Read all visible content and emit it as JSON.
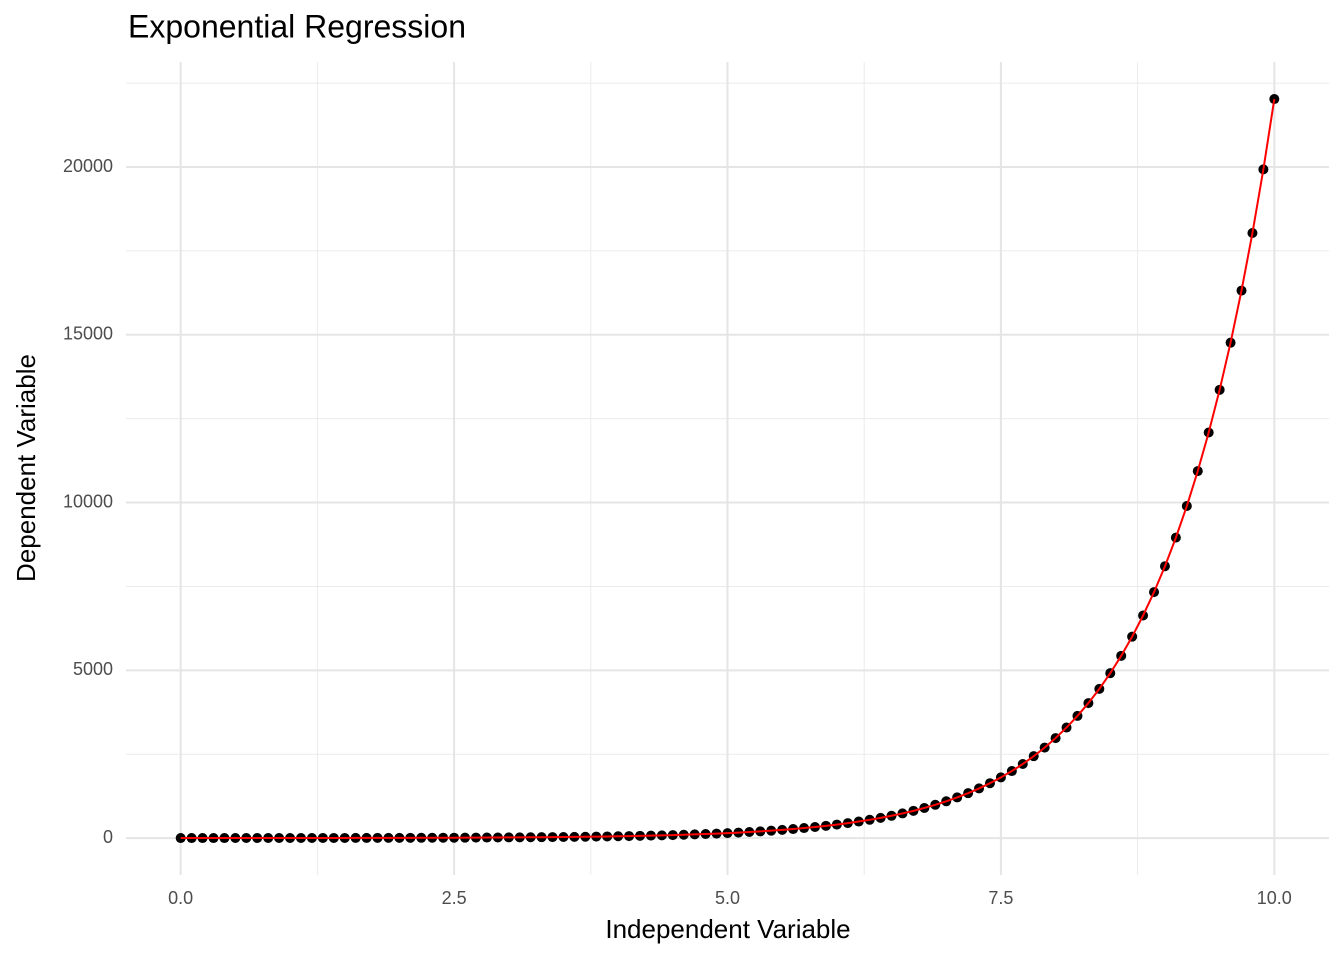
{
  "chart_data": {
    "type": "scatter",
    "title": "Exponential Regression",
    "x_label": "Independent Variable",
    "y_label": "Dependent Variable",
    "x": [
      0,
      0.1,
      0.2,
      0.3,
      0.4,
      0.5,
      0.6,
      0.7,
      0.8,
      0.9,
      1,
      1.1,
      1.2,
      1.3,
      1.4,
      1.5,
      1.6,
      1.7,
      1.8,
      1.9,
      2,
      2.1,
      2.2,
      2.3,
      2.4,
      2.5,
      2.6,
      2.7,
      2.8,
      2.9,
      3,
      3.1,
      3.2,
      3.3,
      3.4,
      3.5,
      3.6,
      3.7,
      3.8,
      3.9,
      4,
      4.1,
      4.2,
      4.3,
      4.4,
      4.5,
      4.6,
      4.7,
      4.8,
      4.9,
      5,
      5.1,
      5.2,
      5.3,
      5.4,
      5.5,
      5.6,
      5.7,
      5.8,
      5.9,
      6,
      6.1,
      6.2,
      6.3,
      6.4,
      6.5,
      6.6,
      6.7,
      6.8,
      6.9,
      7,
      7.1,
      7.2,
      7.3,
      7.4,
      7.5,
      7.6,
      7.7,
      7.8,
      7.9,
      8,
      8.1,
      8.2,
      8.3,
      8.4,
      8.5,
      8.6,
      8.7,
      8.8,
      8.9,
      9,
      9.1,
      9.2,
      9.3,
      9.4,
      9.5,
      9.6,
      9.7,
      9.8,
      9.9,
      10
    ],
    "series": [
      {
        "type": "scatter",
        "color": "#000000",
        "values": [
          1,
          1,
          1,
          1,
          1,
          2,
          2,
          2,
          2,
          2,
          3,
          3,
          3,
          4,
          4,
          4,
          5,
          5,
          6,
          7,
          7,
          8,
          9,
          10,
          11,
          12,
          13,
          15,
          16,
          18,
          20,
          22,
          25,
          27,
          30,
          33,
          37,
          40,
          45,
          49,
          55,
          60,
          67,
          74,
          81,
          90,
          99,
          110,
          122,
          134,
          148,
          164,
          181,
          200,
          221,
          245,
          270,
          299,
          330,
          365,
          403,
          446,
          493,
          545,
          602,
          665,
          735,
          812,
          898,
          992,
          1097,
          1212,
          1339,
          1480,
          1636,
          1808,
          1998,
          2208,
          2441,
          2697,
          2981,
          3295,
          3641,
          4024,
          4447,
          4915,
          5432,
          6003,
          6634,
          7332,
          8103,
          8955,
          9897,
          10938,
          12088,
          13360,
          14765,
          16318,
          18034,
          19930,
          22026
        ]
      },
      {
        "type": "line",
        "color": "#ff0000",
        "values": [
          1,
          1,
          1,
          1,
          1,
          2,
          2,
          2,
          2,
          2,
          3,
          3,
          3,
          4,
          4,
          4,
          5,
          5,
          6,
          7,
          7,
          8,
          9,
          10,
          11,
          12,
          13,
          15,
          16,
          18,
          20,
          22,
          25,
          27,
          30,
          33,
          37,
          40,
          45,
          49,
          55,
          60,
          67,
          74,
          81,
          90,
          99,
          110,
          122,
          134,
          148,
          164,
          181,
          200,
          221,
          245,
          270,
          299,
          330,
          365,
          403,
          446,
          493,
          545,
          602,
          665,
          735,
          812,
          898,
          992,
          1097,
          1212,
          1339,
          1480,
          1636,
          1808,
          1998,
          2208,
          2441,
          2697,
          2981,
          3295,
          3641,
          4024,
          4447,
          4915,
          5432,
          6003,
          6634,
          7332,
          8103,
          8955,
          9897,
          10938,
          12088,
          13360,
          14765,
          16318,
          18034,
          19930,
          22026
        ]
      }
    ],
    "xlim": [
      -0.5,
      10.5
    ],
    "ylim": [
      -1100,
      23130
    ],
    "xticks": [
      {
        "value": 0,
        "label": "0.0"
      },
      2.5,
      {
        "value": 5,
        "label": "5.0"
      },
      7.5,
      {
        "value": 10,
        "label": "10.0"
      }
    ],
    "yticks": [
      0,
      5000,
      10000,
      15000,
      20000
    ],
    "grid": true
  }
}
